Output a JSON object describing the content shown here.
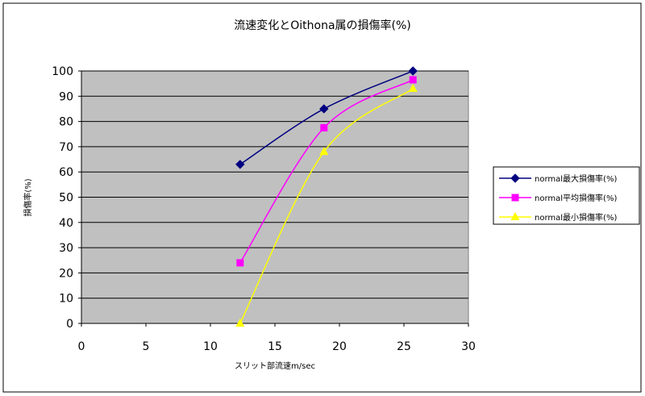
{
  "chart_data": {
    "type": "line",
    "title": "流速変化とOithona属の損傷率(%)",
    "xlabel": "スリット部流速m/sec",
    "ylabel": "損傷率(%)",
    "xlim": [
      0,
      30
    ],
    "ylim": [
      0,
      100
    ],
    "xticks": [
      "0",
      "5",
      "10",
      "15",
      "20",
      "25",
      "30"
    ],
    "yticks": [
      "0",
      "10",
      "20",
      "30",
      "40",
      "50",
      "60",
      "70",
      "80",
      "90",
      "100"
    ],
    "grid": "horizontal",
    "legend_position": "right",
    "series": [
      {
        "name": "normal最大損傷率(%)",
        "color": "#000080",
        "marker": "diamond",
        "x": [
          12.3,
          18.8,
          25.7
        ],
        "values": [
          63,
          85,
          100
        ]
      },
      {
        "name": "normal平均損傷率(%)",
        "color": "#FF00FF",
        "marker": "square",
        "x": [
          12.3,
          18.8,
          25.7
        ],
        "values": [
          24,
          77.5,
          96.5
        ]
      },
      {
        "name": "normal最小損傷率(%)",
        "color": "#FFFF00",
        "marker": "triangle",
        "x": [
          12.3,
          18.8,
          25.7
        ],
        "values": [
          0,
          68,
          93
        ]
      }
    ]
  },
  "colors": {
    "plot_background": "#C0C0C0",
    "gridline": "#000000"
  }
}
